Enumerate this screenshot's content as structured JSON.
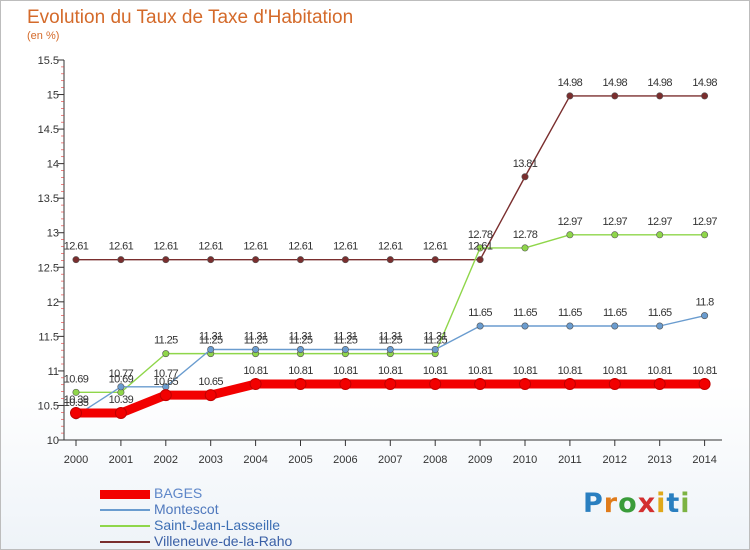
{
  "chart_data": {
    "type": "line",
    "title": "Evolution du Taux de Taxe d'Habitation",
    "subtitle": "(en %)",
    "x": [
      2000,
      2001,
      2002,
      2003,
      2004,
      2005,
      2006,
      2007,
      2008,
      2009,
      2010,
      2011,
      2012,
      2013,
      2014
    ],
    "yticks": [
      "10",
      "10.5",
      "11",
      "11.5",
      "12",
      "12.5",
      "13",
      "13.5",
      "14",
      "14.5",
      "15",
      "15.5"
    ],
    "ylim": [
      10,
      15.5
    ],
    "grid": false,
    "legend_position": "bottom-left",
    "series": [
      {
        "name": "BAGES",
        "color": "#f20000",
        "values": [
          10.39,
          10.39,
          10.65,
          10.65,
          10.81,
          10.81,
          10.81,
          10.81,
          10.81,
          10.81,
          10.81,
          10.81,
          10.81,
          10.81,
          10.81
        ],
        "labels": [
          "10.39",
          "10.39",
          "10.65",
          "10.65",
          "10.81",
          "10.81",
          "10.81",
          "10.81",
          "10.81",
          "10.81",
          "10.81",
          "10.81",
          "10.81",
          "10.81",
          "10.81"
        ]
      },
      {
        "name": "Montescot",
        "color": "#6a9ccf",
        "values": [
          10.35,
          10.77,
          10.77,
          11.31,
          11.31,
          11.31,
          11.31,
          11.31,
          11.31,
          11.65,
          11.65,
          11.65,
          11.65,
          11.65,
          11.8
        ],
        "labels": [
          "10.35",
          "10.77",
          "10.77",
          "11.31",
          "11.31",
          "11.31",
          "11.31",
          "11.31",
          "11.31",
          "11.65",
          "11.65",
          "11.65",
          "11.65",
          "11.65",
          "11.8"
        ]
      },
      {
        "name": "Saint-Jean-Lasseille",
        "color": "#8fd64a",
        "values": [
          10.69,
          10.69,
          11.25,
          11.25,
          11.25,
          11.25,
          11.25,
          11.25,
          11.25,
          12.78,
          12.78,
          12.97,
          12.97,
          12.97,
          12.97
        ],
        "labels": [
          "10.69",
          "10.69",
          "11.25",
          "11.25",
          "11.25",
          "11.25",
          "11.25",
          "11.25",
          "11.25",
          "12.78",
          "12.78",
          "12.97",
          "12.97",
          "12.97",
          "12.97"
        ]
      },
      {
        "name": "Villeneuve-de-la-Raho",
        "color": "#7a2e2e",
        "values": [
          12.61,
          12.61,
          12.61,
          12.61,
          12.61,
          12.61,
          12.61,
          12.61,
          12.61,
          12.61,
          13.81,
          14.98,
          14.98,
          14.98,
          14.98
        ],
        "labels": [
          "12.61",
          "12.61",
          "12.61",
          "12.61",
          "12.61",
          "12.61",
          "12.61",
          "12.61",
          "12.61",
          "12.61",
          "13.81",
          "14.98",
          "14.98",
          "14.98",
          "14.98"
        ]
      }
    ]
  },
  "brand": {
    "logo_text": "Proxiti"
  }
}
